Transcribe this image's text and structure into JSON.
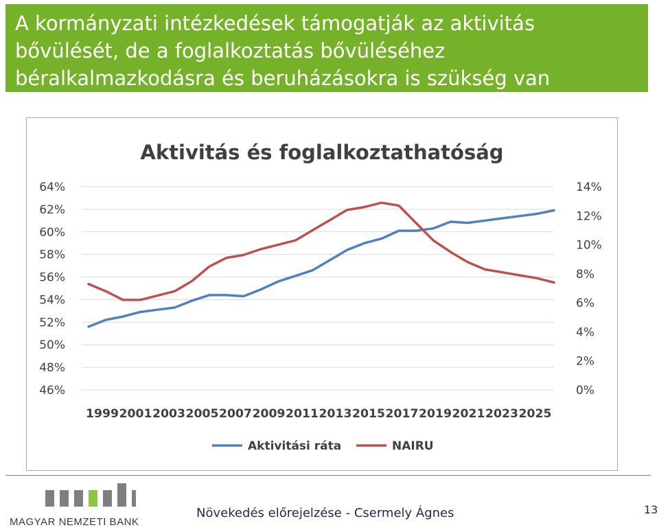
{
  "slide": {
    "title_lines": [
      "A kormányzati intézkedések támogatják az aktivitás",
      "bővülését, de a foglalkoztatás bővüléséhez",
      "béralkalmazkodásra és beruházásokra is szükség van"
    ],
    "footer": "Növekedés előrejelzése - Csermely Ágnes",
    "page_number": "13",
    "logo_text": "MAGYAR NEMZETI BANK",
    "colors": {
      "title_bar": "#75b22a",
      "logo_gray": "#7f7f7f",
      "logo_green": "#8dc63f"
    }
  },
  "chart_data": {
    "type": "line",
    "title": "Aktivitás és foglalkoztathatóság",
    "x_tick_labels": [
      "1999",
      "2001",
      "2003",
      "2005",
      "2007",
      "2009",
      "2011",
      "2013",
      "2015",
      "2017",
      "2019",
      "2021",
      "2023",
      "2025"
    ],
    "x": [
      1999,
      2000,
      2001,
      2002,
      2003,
      2004,
      2005,
      2006,
      2007,
      2008,
      2009,
      2010,
      2011,
      2012,
      2013,
      2014,
      2015,
      2016,
      2017,
      2018,
      2019,
      2020,
      2021,
      2022,
      2023,
      2024,
      2025,
      2026
    ],
    "y_left": {
      "ticks": [
        "46%",
        "48%",
        "50%",
        "52%",
        "54%",
        "56%",
        "58%",
        "60%",
        "62%",
        "64%"
      ],
      "ylim": [
        46,
        64
      ]
    },
    "y_right": {
      "ticks": [
        "0%",
        "2%",
        "4%",
        "6%",
        "8%",
        "10%",
        "12%",
        "14%"
      ],
      "ylim": [
        0,
        14
      ]
    },
    "grid": true,
    "legend_position": "bottom",
    "series": [
      {
        "name": "Aktivitási ráta",
        "axis": "left",
        "color": "#4f81bd",
        "values": [
          51.6,
          52.2,
          52.5,
          52.9,
          53.1,
          53.3,
          53.9,
          54.4,
          54.4,
          54.3,
          54.9,
          55.6,
          56.1,
          56.6,
          57.5,
          58.4,
          59.0,
          59.4,
          60.1,
          60.1,
          60.3,
          60.9,
          60.8,
          61.0,
          61.2,
          61.4,
          61.6,
          61.9
        ]
      },
      {
        "name": "NAIRU",
        "axis": "right",
        "color": "#c0504d",
        "values": [
          7.3,
          6.8,
          6.2,
          6.2,
          6.5,
          6.8,
          7.5,
          8.5,
          9.1,
          9.3,
          9.7,
          10.0,
          10.3,
          11.0,
          11.7,
          12.4,
          12.6,
          12.9,
          12.7,
          11.5,
          10.3,
          9.5,
          8.8,
          8.3,
          8.1,
          7.9,
          7.7,
          7.4
        ]
      }
    ]
  }
}
